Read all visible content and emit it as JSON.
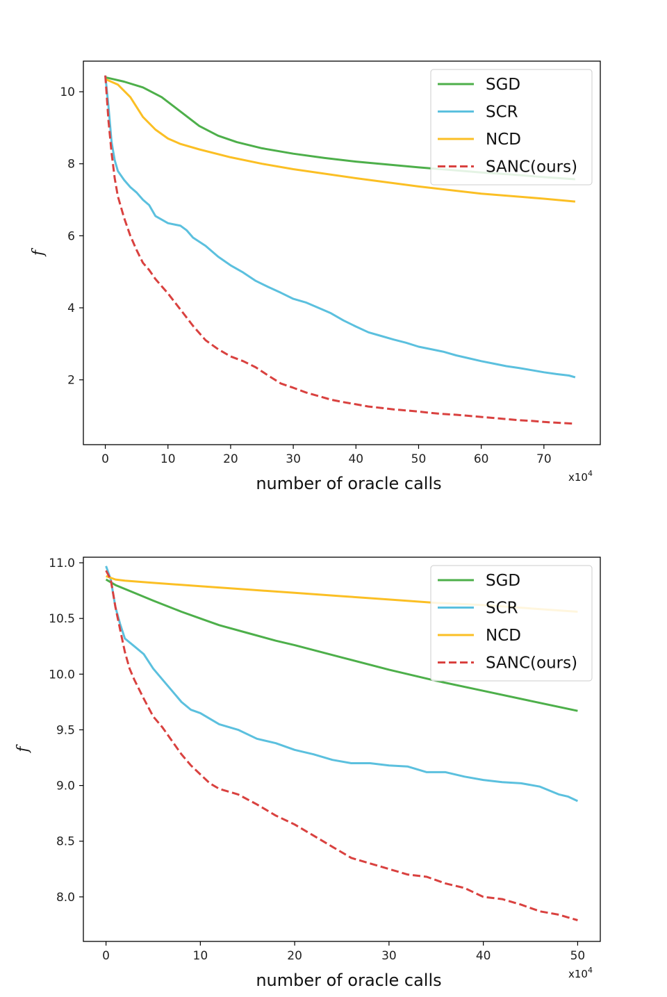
{
  "chart_data": [
    {
      "type": "line",
      "title": "",
      "xlabel": "number of oracle calls",
      "x_scale_label": "x10",
      "x_scale_exp": "4",
      "ylabel": "f",
      "xlim": [
        -3.5,
        79
      ],
      "ylim": [
        0.2,
        10.85
      ],
      "xticks": [
        0,
        10,
        20,
        30,
        40,
        50,
        60,
        70
      ],
      "xtick_labels": [
        "0",
        "10",
        "20",
        "30",
        "40",
        "50",
        "60",
        "70"
      ],
      "yticks": [
        2,
        4,
        6,
        8,
        10
      ],
      "ytick_labels": [
        "2",
        "4",
        "6",
        "8",
        "10"
      ],
      "legend_position": "top-right",
      "series": [
        {
          "name": "SGD",
          "color": "#4daf4a",
          "dash": "solid",
          "x": [
            0,
            3,
            6,
            9,
            12,
            15,
            18,
            21,
            25,
            30,
            35,
            40,
            45,
            50,
            55,
            60,
            65,
            70,
            75
          ],
          "y": [
            10.4,
            10.28,
            10.12,
            9.85,
            9.45,
            9.05,
            8.78,
            8.6,
            8.43,
            8.28,
            8.16,
            8.06,
            7.98,
            7.9,
            7.83,
            7.76,
            7.7,
            7.63,
            7.57
          ]
        },
        {
          "name": "SCR",
          "color": "#5bc0de",
          "dash": "solid",
          "x": [
            0,
            0.5,
            1,
            1.5,
            2,
            3,
            4,
            5,
            6,
            7,
            8,
            10,
            12,
            13,
            14,
            16,
            18,
            20,
            22,
            24,
            26,
            28,
            30,
            32,
            34,
            36,
            38,
            40,
            42,
            44,
            46,
            48,
            50,
            52,
            54,
            56,
            58,
            60,
            62,
            64,
            66,
            68,
            70,
            72,
            74,
            75
          ],
          "y": [
            10.45,
            9.6,
            8.6,
            8.1,
            7.8,
            7.55,
            7.35,
            7.2,
            7.0,
            6.85,
            6.55,
            6.35,
            6.28,
            6.15,
            5.95,
            5.72,
            5.42,
            5.18,
            4.98,
            4.75,
            4.58,
            4.42,
            4.25,
            4.15,
            4.0,
            3.85,
            3.65,
            3.48,
            3.32,
            3.22,
            3.12,
            3.03,
            2.92,
            2.85,
            2.78,
            2.68,
            2.6,
            2.52,
            2.45,
            2.38,
            2.33,
            2.27,
            2.21,
            2.16,
            2.12,
            2.07
          ]
        },
        {
          "name": "NCD",
          "color": "#fbbf24",
          "dash": "solid",
          "x": [
            0,
            2,
            4,
            6,
            8,
            10,
            12,
            15,
            20,
            25,
            30,
            40,
            50,
            60,
            70,
            75
          ],
          "y": [
            10.35,
            10.2,
            9.85,
            9.3,
            8.95,
            8.7,
            8.55,
            8.4,
            8.18,
            8.0,
            7.85,
            7.6,
            7.37,
            7.17,
            7.03,
            6.95
          ]
        },
        {
          "name": "SANC(ours)",
          "color": "#d9413f",
          "dash": "dashed",
          "x": [
            0,
            0.5,
            1,
            1.5,
            2,
            3,
            4,
            5,
            6,
            7,
            8,
            10,
            12,
            14,
            16,
            18,
            20,
            22,
            24,
            26,
            28,
            30,
            32,
            34,
            36,
            38,
            40,
            42,
            44,
            46,
            48,
            50,
            52,
            54,
            56,
            58,
            60,
            62,
            64,
            66,
            68,
            70,
            72,
            74,
            75
          ],
          "y": [
            10.45,
            9.2,
            8.3,
            7.6,
            7.1,
            6.5,
            6.0,
            5.6,
            5.25,
            5.05,
            4.8,
            4.4,
            3.95,
            3.5,
            3.1,
            2.85,
            2.65,
            2.52,
            2.35,
            2.12,
            1.9,
            1.78,
            1.65,
            1.55,
            1.45,
            1.38,
            1.32,
            1.26,
            1.22,
            1.18,
            1.15,
            1.12,
            1.08,
            1.05,
            1.03,
            1.0,
            0.97,
            0.94,
            0.91,
            0.88,
            0.86,
            0.83,
            0.81,
            0.79,
            0.78
          ]
        }
      ]
    },
    {
      "type": "line",
      "title": "",
      "xlabel": "number of oracle calls",
      "x_scale_label": "x10",
      "x_scale_exp": "4",
      "ylabel": "f",
      "xlim": [
        -2.4,
        52.4
      ],
      "ylim": [
        7.6,
        11.05
      ],
      "xticks": [
        0,
        10,
        20,
        30,
        40,
        50
      ],
      "xtick_labels": [
        "0",
        "10",
        "20",
        "30",
        "40",
        "50"
      ],
      "yticks": [
        8.0,
        8.5,
        9.0,
        9.5,
        10.0,
        10.5,
        11.0
      ],
      "ytick_labels": [
        "8.0",
        "8.5",
        "9.0",
        "9.5",
        "10.0",
        "10.5",
        "11.0"
      ],
      "legend_position": "top-right",
      "series": [
        {
          "name": "SGD",
          "color": "#4daf4a",
          "dash": "solid",
          "x": [
            0,
            1,
            3,
            5,
            8,
            10,
            12,
            15,
            18,
            20,
            25,
            30,
            35,
            40,
            45,
            50
          ],
          "y": [
            10.85,
            10.8,
            10.73,
            10.66,
            10.56,
            10.5,
            10.44,
            10.37,
            10.3,
            10.26,
            10.15,
            10.04,
            9.94,
            9.85,
            9.76,
            9.67
          ]
        },
        {
          "name": "SCR",
          "color": "#5bc0de",
          "dash": "solid",
          "x": [
            0,
            0.5,
            1,
            1.5,
            2,
            3,
            4,
            5,
            6,
            7,
            8,
            9,
            10,
            12,
            14,
            16,
            18,
            20,
            22,
            24,
            26,
            28,
            30,
            32,
            34,
            36,
            38,
            40,
            42,
            44,
            46,
            48,
            49,
            50
          ],
          "y": [
            10.97,
            10.85,
            10.6,
            10.45,
            10.32,
            10.25,
            10.18,
            10.05,
            9.95,
            9.85,
            9.75,
            9.68,
            9.65,
            9.55,
            9.5,
            9.42,
            9.38,
            9.32,
            9.28,
            9.23,
            9.2,
            9.2,
            9.18,
            9.17,
            9.12,
            9.12,
            9.08,
            9.05,
            9.03,
            9.02,
            8.99,
            8.92,
            8.9,
            8.86
          ]
        },
        {
          "name": "NCD",
          "color": "#fbbf24",
          "dash": "solid",
          "x": [
            0,
            1,
            2,
            5,
            10,
            15,
            20,
            25,
            30,
            35,
            40,
            45,
            50
          ],
          "y": [
            10.88,
            10.85,
            10.84,
            10.82,
            10.79,
            10.76,
            10.73,
            10.7,
            10.67,
            10.64,
            10.62,
            10.59,
            10.56
          ]
        },
        {
          "name": "SANC(ours)",
          "color": "#d9413f",
          "dash": "dashed",
          "x": [
            0,
            0.5,
            1,
            1.5,
            2,
            2.5,
            3,
            4,
            5,
            6,
            7,
            8,
            9,
            10,
            11,
            12,
            14,
            16,
            18,
            20,
            22,
            24,
            26,
            28,
            30,
            32,
            34,
            36,
            38,
            40,
            42,
            44,
            46,
            48,
            50
          ],
          "y": [
            10.93,
            10.85,
            10.6,
            10.4,
            10.2,
            10.05,
            9.95,
            9.78,
            9.62,
            9.52,
            9.4,
            9.28,
            9.18,
            9.1,
            9.02,
            8.97,
            8.92,
            8.83,
            8.73,
            8.65,
            8.55,
            8.45,
            8.35,
            8.3,
            8.25,
            8.2,
            8.18,
            8.12,
            8.08,
            8.0,
            7.98,
            7.93,
            7.87,
            7.84,
            7.79
          ]
        }
      ]
    }
  ]
}
